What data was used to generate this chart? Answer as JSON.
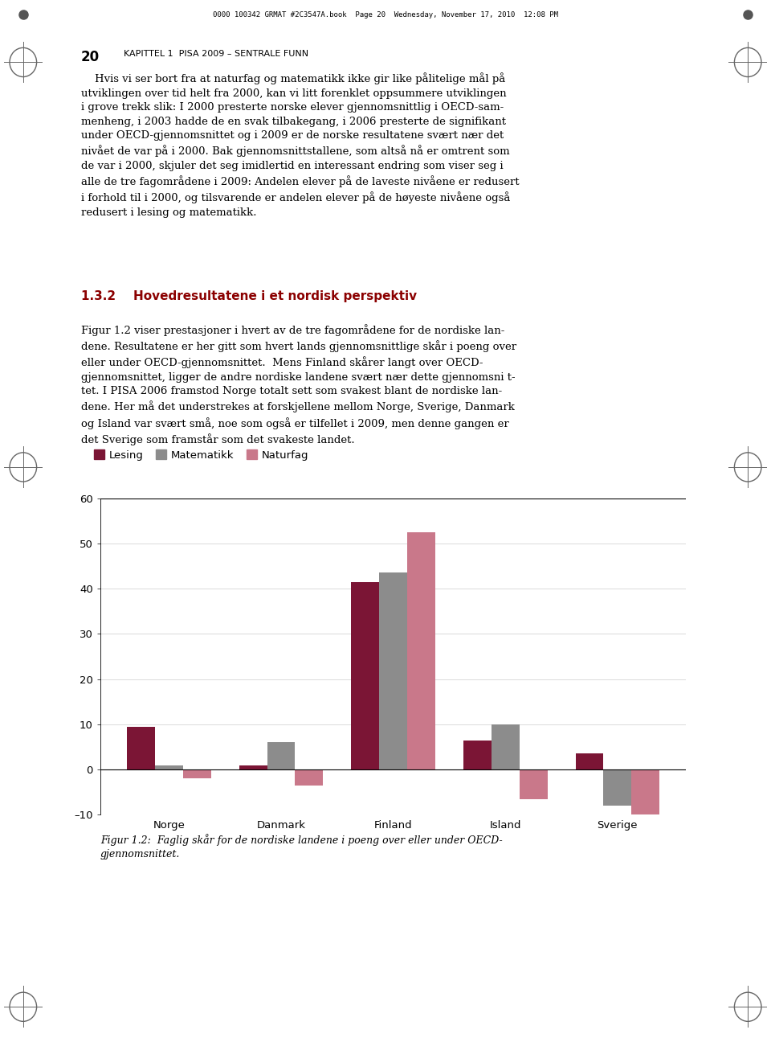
{
  "countries": [
    "Norge",
    "Danmark",
    "Finland",
    "Island",
    "Sverige"
  ],
  "lesing": [
    9.5,
    1.0,
    41.5,
    6.5,
    3.5
  ],
  "matematikk": [
    1.0,
    6.0,
    43.5,
    10.0,
    -8.0
  ],
  "naturfag": [
    -2.0,
    -3.5,
    52.5,
    -6.5,
    -10.0
  ],
  "color_lesing": "#7B1535",
  "color_matematikk": "#8C8C8C",
  "color_naturfag": "#C9788A",
  "legend_labels": [
    "Lesing",
    "Matematikk",
    "Naturfag"
  ],
  "ylim": [
    -10,
    60
  ],
  "yticks": [
    -10,
    0,
    10,
    20,
    30,
    40,
    50,
    60
  ],
  "bar_width": 0.25,
  "figsize": [
    9.6,
    12.91
  ],
  "dpi": 100,
  "page_number": "20",
  "header_text": "KAPITTEL 1  PISA 2009 – SENTRALE FUNN",
  "section_number": "1.3.2",
  "section_title": "Hovedresultatene i et nordisk perspektiv",
  "section_color": "#8B0000",
  "body_text1": "    Hvis vi ser bort fra at naturfag og matematikk ikke gir like pålitelige mål på\nutviklingen over tid helt fra 2000, kan vi litt forenklet oppsummere utviklingen\ni grove trekk slik: I 2000 presterte norske elever gjennomsnittlig i OECD-sam-\nmenheng, i 2003 hadde de en svak tilbakegang, i 2006 presterte de signifikant\nunder OECD-gjennomsnittet og i 2009 er de norske resultatene svært nær det\nnivået de var på i 2000. Bak gjennomsnittstallene, som altså nå er omtrent som\nde var i 2000, skjuler det seg imidlertid en interessant endring som viser seg i\nalle de tre fagområdene i 2009: Andelen elever på de laveste nivåene er redusert\ni forhold til i 2000, og tilsvarende er andelen elever på de høyeste nivåene også\nredusert i lesing og matematikk.",
  "body_text2": "Figur 1.2 viser prestasjoner i hvert av de tre fagområdene for de nordiske lan-\ndene. Resultatene er her gitt som hvert lands gjennomsnittlige skår i poeng over\neller under OECD-gjennomsnittet.  Mens Finland skårer langt over OECD-\ngjennomsnittet, ligger de andre nordiske landene svært nær dette gjennomsni t-\ntet. I PISA 2006 framstod Norge totalt sett som svakest blant de nordiske lan-\ndene. Her må det understrekes at forskjellene mellom Norge, Sverige, Danmark\nog Island var svært små, noe som også er tilfellet i 2009, men denne gangen er\ndet Sverige som framstår som det svakeste landet.",
  "caption": "Figur 1.2:  Faglig skår for de nordiske landene i poeng over eller under OECD-\ngjennomsnittet.",
  "top_bar_text": "0000 100342 GRMAT #2C3547A.book  Page 20  Wednesday, November 17, 2010  12:08 PM"
}
